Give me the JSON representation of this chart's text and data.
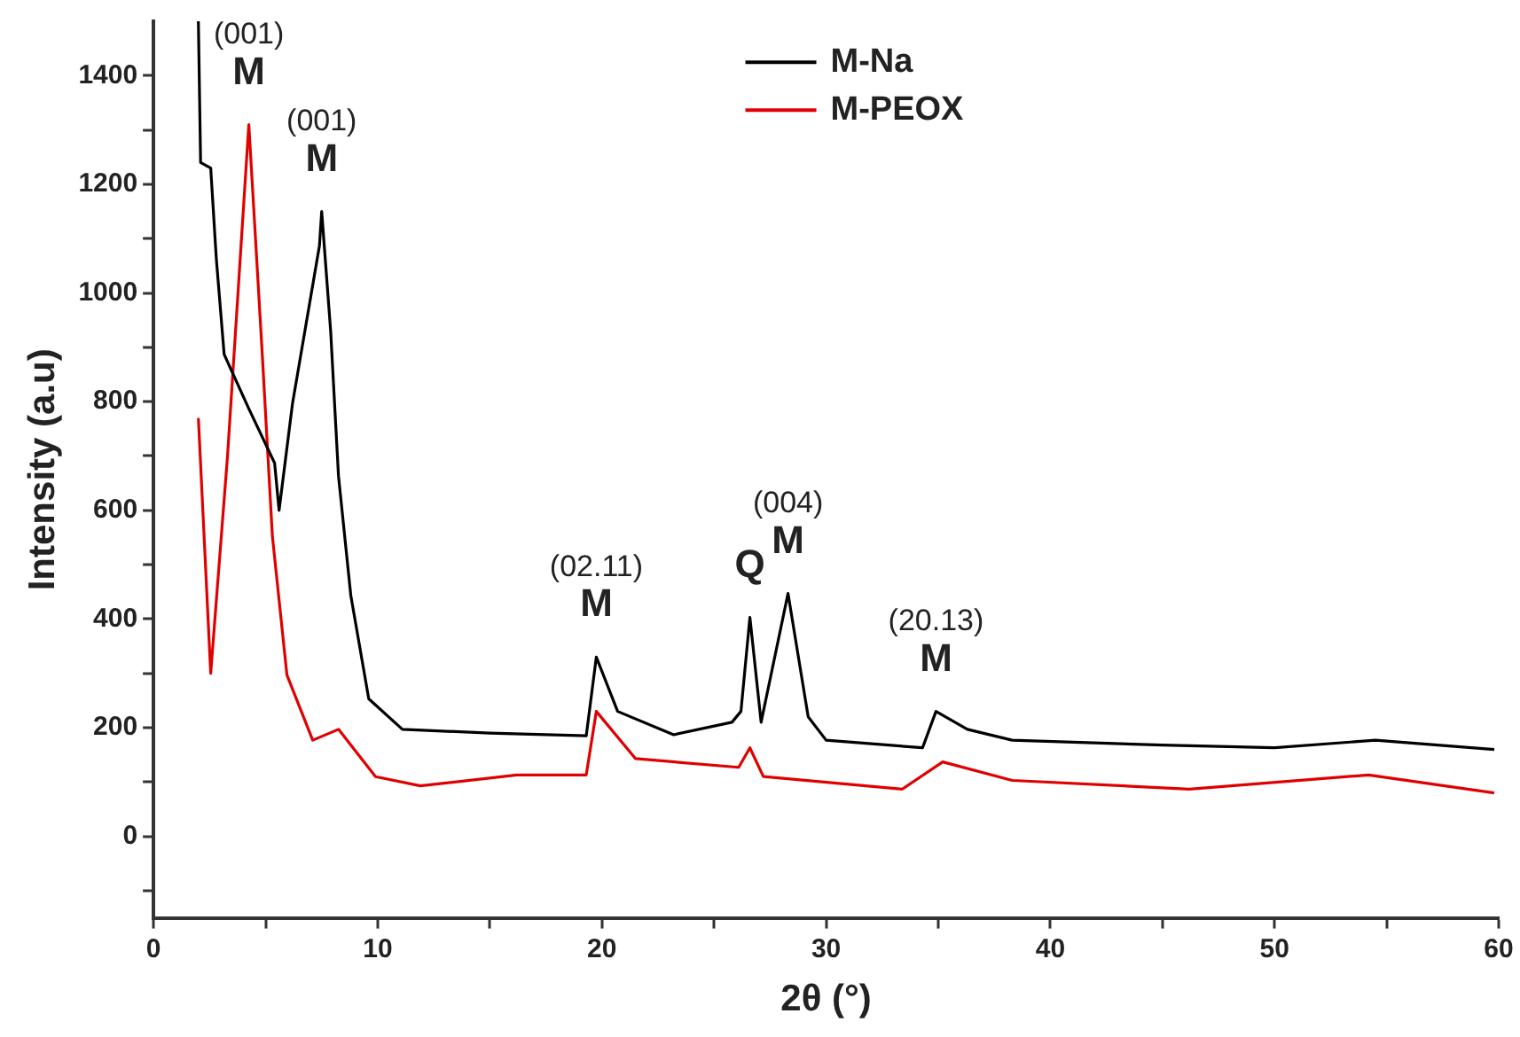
{
  "chart_data": {
    "type": "line",
    "xlabel": "2θ (°)",
    "ylabel": "Intensity (a.u)",
    "xlim": [
      0,
      60
    ],
    "ylim": [
      -150,
      1500
    ],
    "xticks": [
      0,
      {
        "value": 5,
        "label": null
      },
      10,
      {
        "value": 15,
        "label": null
      },
      20,
      {
        "value": 25,
        "label": null
      },
      30,
      {
        "value": 35,
        "label": null
      },
      40,
      {
        "value": 45,
        "label": null
      },
      50,
      {
        "value": 55,
        "label": null
      },
      60
    ],
    "yticks": [
      {
        "value": -100,
        "label": null
      },
      0,
      {
        "value": 100,
        "label": null
      },
      200,
      {
        "value": 300,
        "label": null
      },
      400,
      {
        "value": 500,
        "label": null
      },
      600,
      {
        "value": 700,
        "label": null
      },
      800,
      {
        "value": 900,
        "label": null
      },
      1000,
      {
        "value": 1100,
        "label": null
      },
      1200,
      {
        "value": 1300,
        "label": null
      },
      1400
    ],
    "grid": false,
    "legend": "top",
    "marker": "none",
    "line_style": "solid",
    "series": [
      {
        "name": "M-Na",
        "color": "#000000",
        "x": [
          2,
          2.1,
          2.55,
          2.8,
          3.15,
          4.25,
          5.4,
          5.6,
          6.2,
          7.4,
          7.5,
          7.9,
          8.25,
          8.8,
          9.6,
          11.1,
          15,
          19.3,
          19.75,
          20.7,
          23.2,
          25.8,
          26.2,
          26.6,
          27.1,
          28.3,
          29.2,
          30,
          34.3,
          34.9,
          36.3,
          38.3,
          45,
          50,
          54.5,
          59.8
        ],
        "values": [
          1500,
          1240,
          1230,
          1063,
          887,
          787,
          687,
          600,
          797,
          1087,
          1150,
          930,
          663,
          443,
          253,
          197,
          190,
          185,
          330,
          230,
          187,
          210,
          230,
          403,
          210,
          447,
          220,
          177,
          163,
          230,
          197,
          177,
          168,
          163,
          177,
          160
        ]
      },
      {
        "name": "M-PEOX",
        "color": "#e00000",
        "x": [
          2,
          2.55,
          3.3,
          4.25,
          4.85,
          5.3,
          5.95,
          7.1,
          8.25,
          9.9,
          11.9,
          16.2,
          19.3,
          19.75,
          21.5,
          26.1,
          26.6,
          27.2,
          33.4,
          35.2,
          38.3,
          46.2,
          54.2,
          59.8
        ],
        "values": [
          770,
          300,
          700,
          1310,
          887,
          553,
          297,
          177,
          197,
          110,
          93,
          113,
          113,
          230,
          143,
          127,
          163,
          110,
          87,
          137,
          103,
          87,
          113,
          80
        ]
      }
    ],
    "annotations": [
      {
        "text": "(001)",
        "x": 4.25,
        "y": 1310
      },
      {
        "text": "M",
        "x": 4.25,
        "y": 1310
      },
      {
        "text": "(001)",
        "x": 7.5,
        "y": 1150
      },
      {
        "text": "M",
        "x": 7.5,
        "y": 1150
      },
      {
        "text": "(02.11)",
        "x": 19.75,
        "y": 330
      },
      {
        "text": "M",
        "x": 19.75,
        "y": 330
      },
      {
        "text": "Q",
        "x": 26.6,
        "y": 403
      },
      {
        "text": "(004)",
        "x": 28.3,
        "y": 447
      },
      {
        "text": "M",
        "x": 28.3,
        "y": 447
      },
      {
        "text": "(20.13)",
        "x": 34.9,
        "y": 230
      },
      {
        "text": "M",
        "x": 34.9,
        "y": 230
      }
    ]
  }
}
